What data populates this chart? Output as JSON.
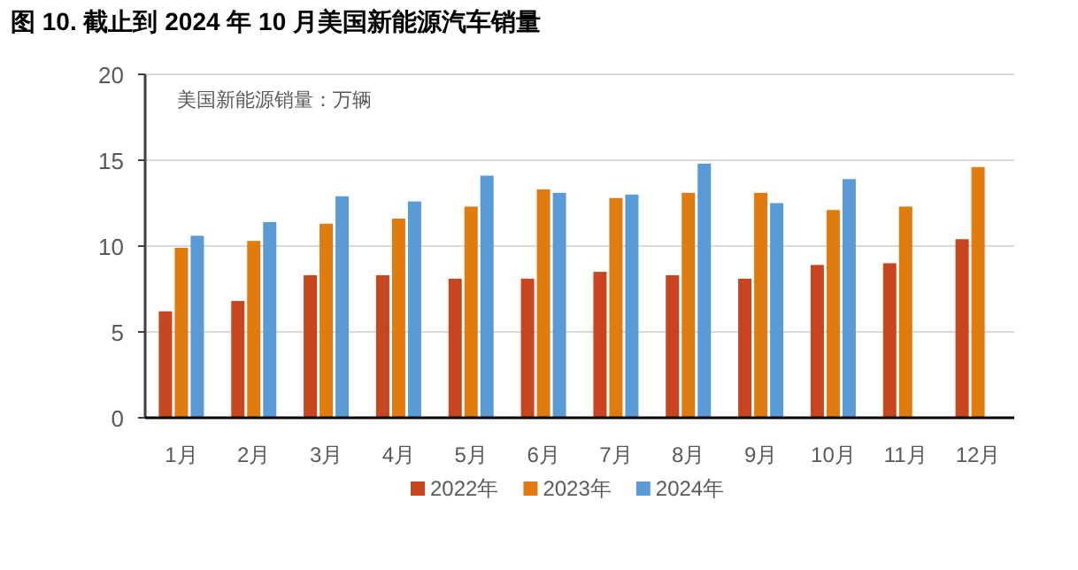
{
  "chart_data": {
    "type": "bar",
    "title": "图 10. 截止到 2024 年 10 月美国新能源汽车销量",
    "ylabel": "美国新能源销量：万辆",
    "categories": [
      "1月",
      "2月",
      "3月",
      "4月",
      "5月",
      "6月",
      "7月",
      "8月",
      "9月",
      "10月",
      "11月",
      "12月"
    ],
    "series": [
      {
        "name": "2022年",
        "color": "#c8461f",
        "values": [
          6.2,
          6.8,
          8.3,
          8.3,
          8.1,
          8.1,
          8.5,
          8.3,
          8.1,
          8.9,
          9.0,
          10.4
        ]
      },
      {
        "name": "2023年",
        "color": "#e07b10",
        "values": [
          9.9,
          10.3,
          11.3,
          11.6,
          12.3,
          13.3,
          12.8,
          13.1,
          13.1,
          12.1,
          12.3,
          14.6
        ]
      },
      {
        "name": "2024年",
        "color": "#5b9bd5",
        "values": [
          10.6,
          11.4,
          12.9,
          12.6,
          14.1,
          13.1,
          13.0,
          14.8,
          12.5,
          13.9,
          null,
          null
        ]
      }
    ],
    "ylim": [
      0,
      20
    ],
    "yticks": [
      0,
      5,
      10,
      15,
      20
    ],
    "grid": "y",
    "legend": "bottom"
  }
}
